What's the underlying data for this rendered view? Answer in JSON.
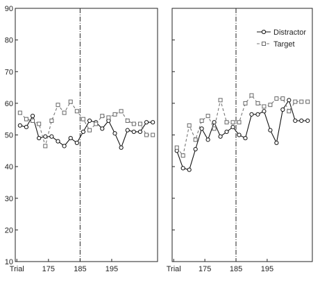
{
  "chart_data": {
    "type": "line",
    "panels": 2,
    "x_tick_labels": [
      "Trial",
      "175",
      "185",
      "195"
    ],
    "x_tick_values": [
      165,
      175,
      185,
      195
    ],
    "xlim": [
      164.5,
      209.5
    ],
    "y_ticks": [
      10,
      20,
      30,
      40,
      50,
      60,
      70,
      80,
      90
    ],
    "ylim": [
      10,
      90
    ],
    "vertical_reference_x": 185,
    "legend": {
      "placement": "top-right",
      "panel_index": 1,
      "entries": [
        {
          "label": "Distractor",
          "series_index": 0
        },
        {
          "label": "Target",
          "series_index": 1
        }
      ]
    },
    "charts": [
      {
        "series": [
          {
            "name": "Distractor",
            "line": "solid",
            "marker": "circle",
            "x": [
              166,
              168,
              170,
              172,
              174,
              176,
              178,
              180,
              182,
              184,
              186,
              188,
              190,
              192,
              194,
              196,
              198,
              200,
              202,
              204,
              206,
              208
            ],
            "y": [
              53.0,
              52.5,
              56.0,
              49.0,
              49.5,
              49.5,
              48.0,
              46.5,
              49.0,
              47.5,
              51.0,
              54.5,
              54.0,
              52.0,
              54.5,
              50.5,
              46.0,
              51.5,
              51.0,
              51.0,
              54.0,
              54.0
            ]
          },
          {
            "name": "Target",
            "line": "dashed",
            "marker": "square",
            "x": [
              166,
              168,
              170,
              172,
              174,
              176,
              178,
              180,
              182,
              184,
              186,
              188,
              190,
              192,
              194,
              196,
              198,
              200,
              202,
              204,
              206,
              208
            ],
            "y": [
              57.0,
              55.0,
              54.5,
              53.5,
              46.5,
              54.5,
              59.5,
              57.0,
              60.5,
              57.5,
              55.0,
              51.5,
              53.5,
              56.0,
              55.5,
              56.5,
              57.5,
              54.5,
              53.5,
              53.5,
              50.0,
              50.0
            ]
          }
        ]
      },
      {
        "series": [
          {
            "name": "Distractor",
            "line": "solid",
            "marker": "circle",
            "x": [
              166,
              168,
              170,
              172,
              174,
              176,
              178,
              180,
              182,
              184,
              186,
              188,
              190,
              192,
              194,
              196,
              198,
              200,
              202,
              204,
              206,
              208
            ],
            "y": [
              45.0,
              39.5,
              39.0,
              45.5,
              52.0,
              48.5,
              54.0,
              49.5,
              51.0,
              52.5,
              50.0,
              49.0,
              56.5,
              56.5,
              57.5,
              51.5,
              47.5,
              58.0,
              61.0,
              54.5,
              54.5,
              54.5
            ]
          },
          {
            "name": "Target",
            "line": "dashed",
            "marker": "square",
            "x": [
              166,
              168,
              170,
              172,
              174,
              176,
              178,
              180,
              182,
              184,
              186,
              188,
              190,
              192,
              194,
              196,
              198,
              200,
              202,
              204,
              206,
              208
            ],
            "y": [
              46.0,
              43.5,
              53.0,
              48.5,
              54.5,
              56.0,
              52.0,
              61.0,
              54.0,
              54.0,
              54.0,
              60.0,
              62.5,
              60.0,
              59.0,
              59.5,
              61.5,
              61.5,
              57.5,
              60.5,
              60.5,
              60.5
            ]
          }
        ]
      }
    ]
  }
}
